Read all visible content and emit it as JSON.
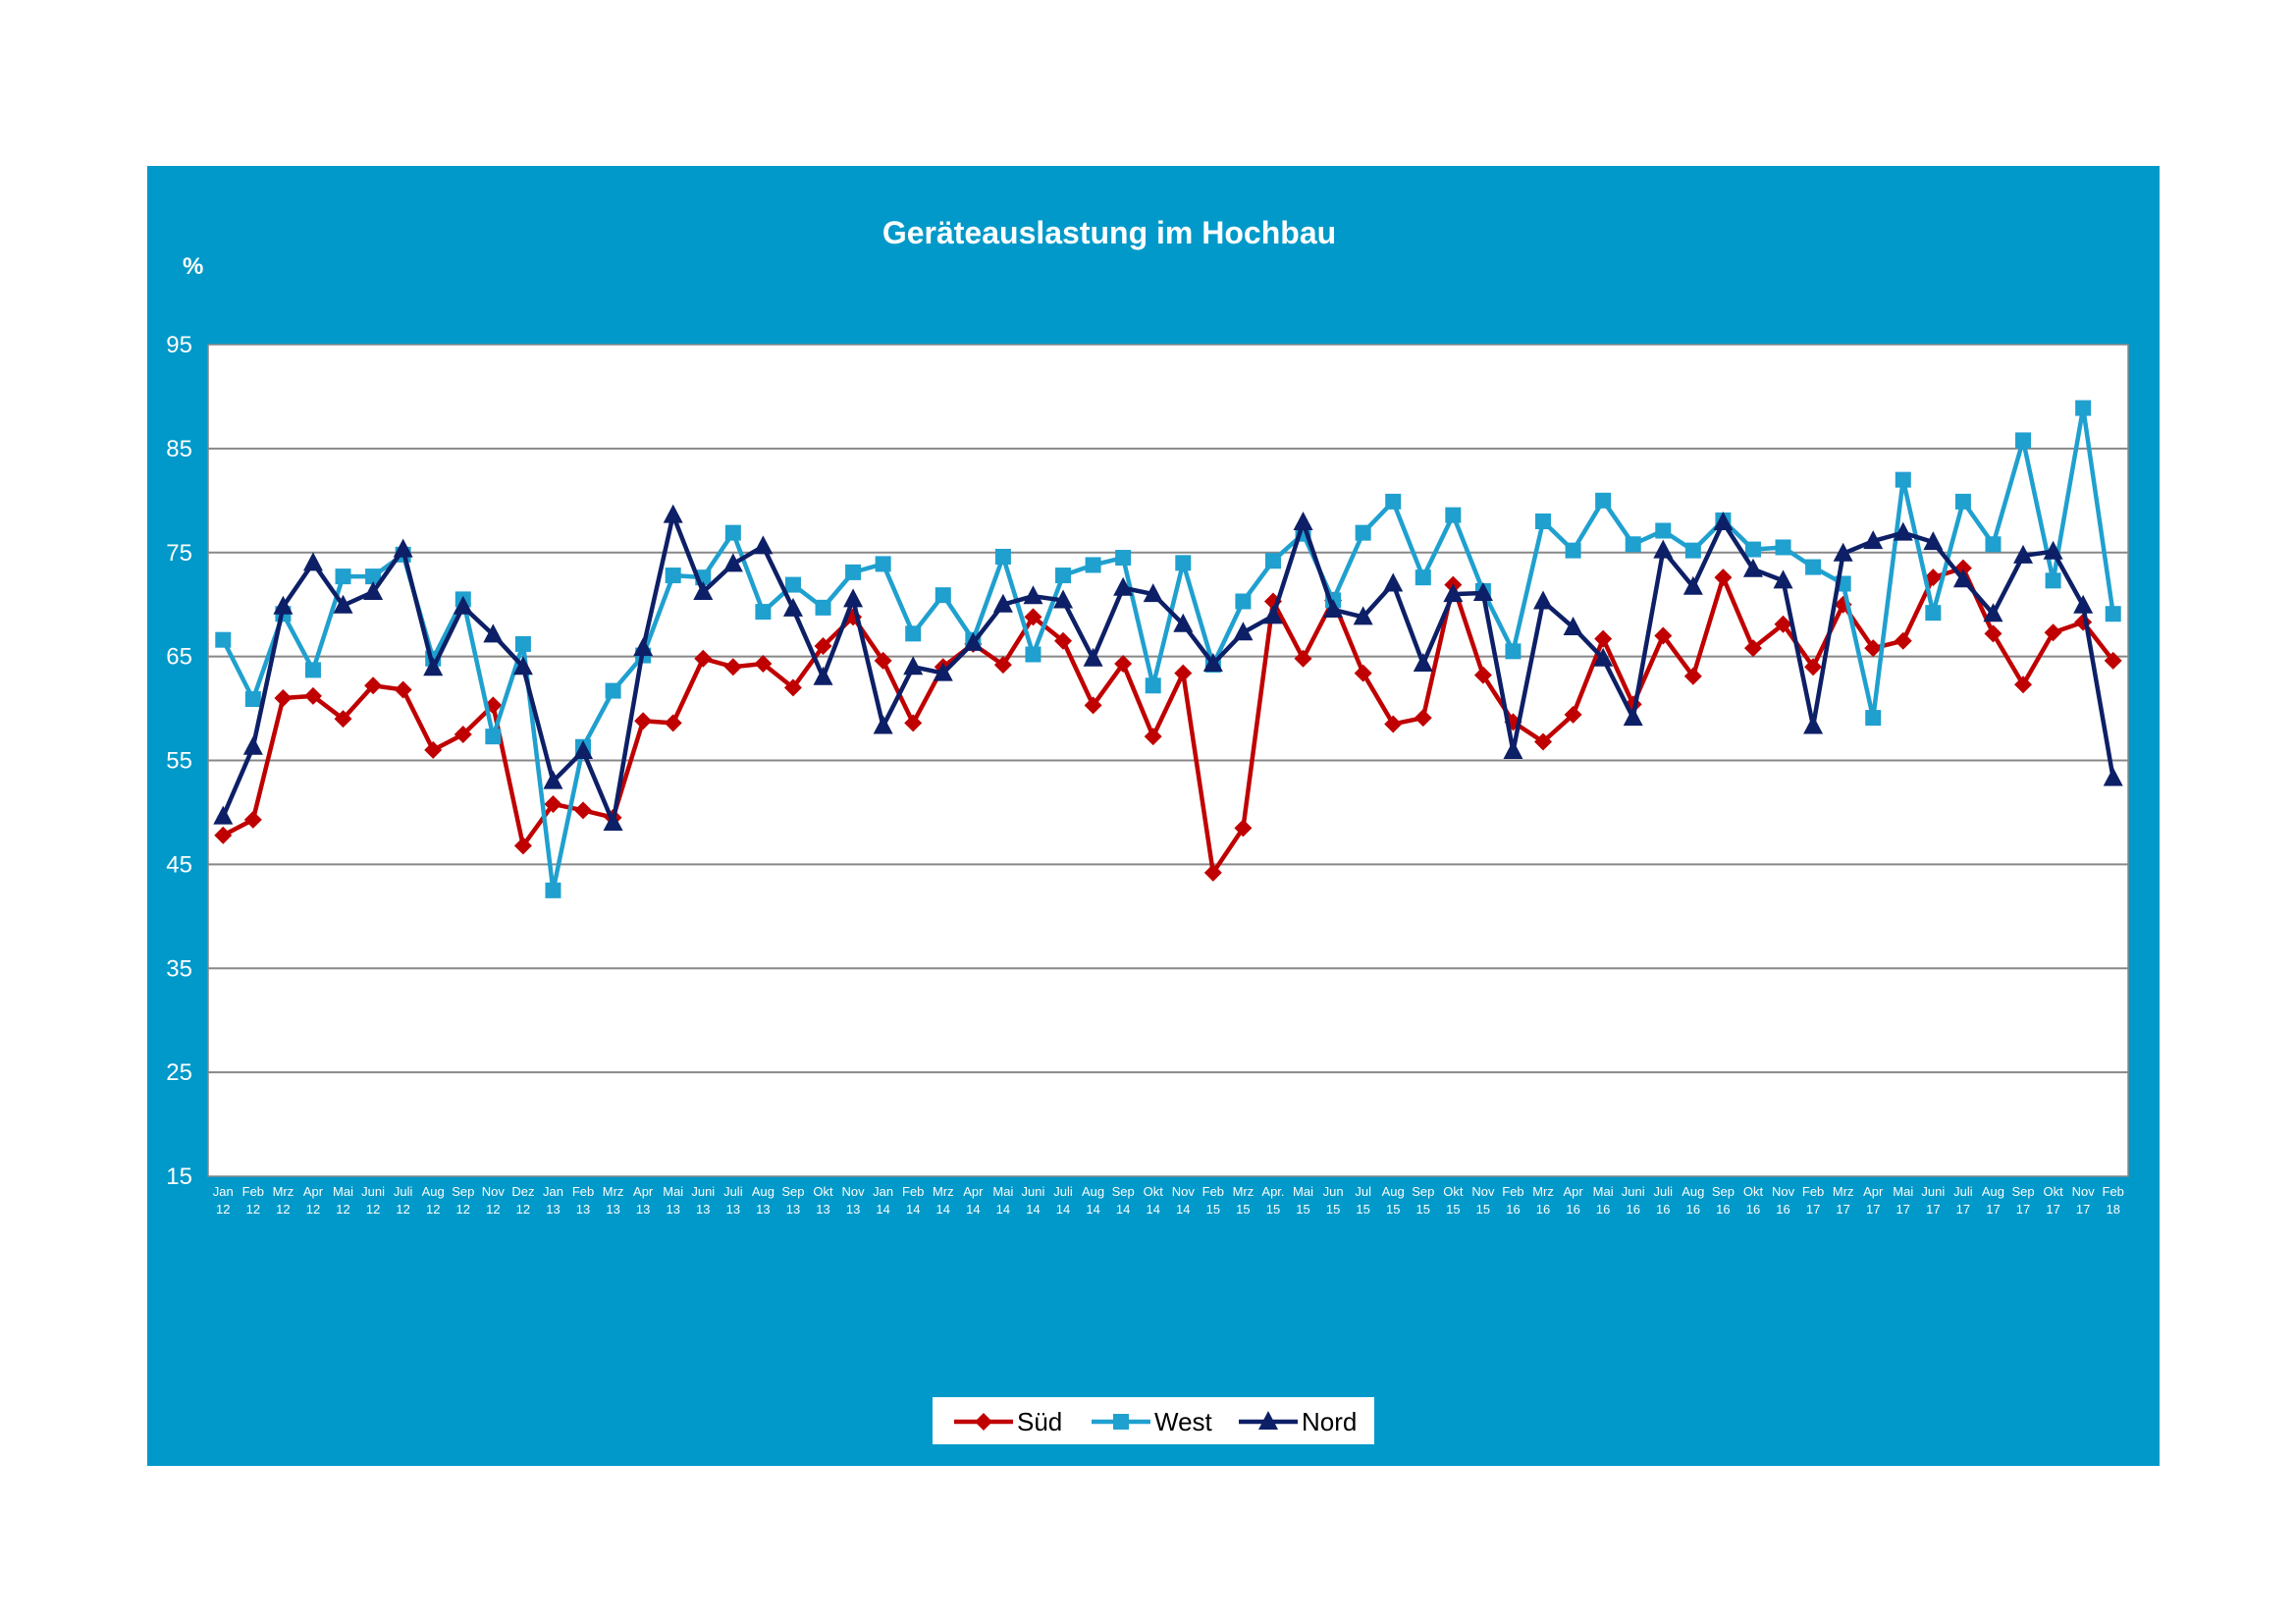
{
  "colors": {
    "frame": "#0099c9",
    "plot_bg": "#ffffff",
    "grid": "#888888",
    "sued": "#c00000",
    "west": "#1fa0cf",
    "nord": "#0d1f66"
  },
  "chart_data": {
    "type": "line",
    "title": "Geräteauslastung im Hochbau",
    "unit_label": "%",
    "xlabel": "",
    "ylabel": "",
    "ylim": [
      15,
      95
    ],
    "yticks": [
      "95",
      "85",
      "75",
      "65",
      "55",
      "45",
      "35",
      "25",
      "15"
    ],
    "grid": true,
    "legend_position": "bottom-center",
    "categories": [
      [
        "Jan",
        "12"
      ],
      [
        "Feb",
        "12"
      ],
      [
        "Mrz",
        "12"
      ],
      [
        "Apr",
        "12"
      ],
      [
        "Mai",
        "12"
      ],
      [
        "Juni",
        "12"
      ],
      [
        "Juli",
        "12"
      ],
      [
        "Aug",
        "12"
      ],
      [
        "Sep",
        "12"
      ],
      [
        "Nov",
        "12"
      ],
      [
        "Dez",
        "12"
      ],
      [
        "Jan",
        "13"
      ],
      [
        "Feb",
        "13"
      ],
      [
        "Mrz",
        "13"
      ],
      [
        "Apr",
        "13"
      ],
      [
        "Mai",
        "13"
      ],
      [
        "Juni",
        "13"
      ],
      [
        "Juli",
        "13"
      ],
      [
        "Aug",
        "13"
      ],
      [
        "Sep",
        "13"
      ],
      [
        "Okt",
        "13"
      ],
      [
        "Nov",
        "13"
      ],
      [
        "Jan",
        "14"
      ],
      [
        "Feb",
        "14"
      ],
      [
        "Mrz",
        "14"
      ],
      [
        "Apr",
        "14"
      ],
      [
        "Mai",
        "14"
      ],
      [
        "Juni",
        "14"
      ],
      [
        "Juli",
        "14"
      ],
      [
        "Aug",
        "14"
      ],
      [
        "Sep",
        "14"
      ],
      [
        "Okt",
        "14"
      ],
      [
        "Nov",
        "14"
      ],
      [
        "Feb",
        "15"
      ],
      [
        "Mrz",
        "15"
      ],
      [
        "Apr.",
        "15"
      ],
      [
        "Mai",
        "15"
      ],
      [
        "Jun",
        "15"
      ],
      [
        "Jul",
        "15"
      ],
      [
        "Aug",
        "15"
      ],
      [
        "Sep",
        "15"
      ],
      [
        "Okt",
        "15"
      ],
      [
        "Nov",
        "15"
      ],
      [
        "Feb",
        "16"
      ],
      [
        "Mrz",
        "16"
      ],
      [
        "Apr",
        "16"
      ],
      [
        "Mai",
        "16"
      ],
      [
        "Juni",
        "16"
      ],
      [
        "Juli",
        "16"
      ],
      [
        "Aug",
        "16"
      ],
      [
        "Sep",
        "16"
      ],
      [
        "Okt",
        "16"
      ],
      [
        "Nov",
        "16"
      ],
      [
        "Feb",
        "17"
      ],
      [
        "Mrz",
        "17"
      ],
      [
        "Apr",
        "17"
      ],
      [
        "Mai",
        "17"
      ],
      [
        "Juni",
        "17"
      ],
      [
        "Juli",
        "17"
      ],
      [
        "Aug",
        "17"
      ],
      [
        "Sep",
        "17"
      ],
      [
        "Okt",
        "17"
      ],
      [
        "Nov",
        "17"
      ],
      [
        "Feb",
        "18"
      ]
    ],
    "series": [
      {
        "name": "Süd",
        "marker": "diamond",
        "values": [
          47.8,
          49.3,
          61,
          61.2,
          59,
          62.2,
          61.8,
          56,
          57.5,
          60.3,
          46.8,
          50.8,
          50.2,
          49.5,
          58.8,
          58.6,
          64.8,
          64,
          64.3,
          62,
          66,
          68.8,
          64.6,
          58.6,
          64,
          66.2,
          64.2,
          68.8,
          66.5,
          60.3,
          64.3,
          57.3,
          63.4,
          44.2,
          48.5,
          70.3,
          64.8,
          70.4,
          63.4,
          58.5,
          59.1,
          71.9,
          63.2,
          58.7,
          56.8,
          59.4,
          66.7,
          60.4,
          67,
          63.1,
          72.6,
          65.8,
          68.1,
          64,
          70,
          65.8,
          66.5,
          72.6,
          73.5,
          67.2,
          62.3,
          67.3,
          68.3,
          64.6
        ]
      },
      {
        "name": "West",
        "marker": "square",
        "values": [
          66.6,
          60.9,
          69.1,
          63.7,
          72.7,
          72.7,
          74.8,
          64.8,
          70.5,
          57.3,
          66.2,
          42.5,
          56.3,
          61.7,
          65.1,
          72.8,
          72.6,
          76.9,
          69.3,
          71.9,
          69.7,
          73.1,
          73.9,
          67.2,
          70.9,
          66.6,
          74.6,
          65.2,
          72.8,
          73.8,
          74.5,
          62.2,
          74,
          64.2,
          70.3,
          74.2,
          76.8,
          70.4,
          76.9,
          79.9,
          72.6,
          78.6,
          71.3,
          65.5,
          78,
          75.2,
          80,
          75.8,
          77.1,
          75.2,
          78.1,
          75.3,
          75.5,
          73.6,
          72,
          59.1,
          82,
          69.2,
          79.9,
          75.8,
          85.8,
          72.3,
          88.9,
          69.1
        ]
      },
      {
        "name": "Nord",
        "marker": "triangle",
        "values": [
          49.6,
          56.3,
          69.8,
          74,
          69.9,
          71.2,
          75.3,
          63.9,
          69.8,
          67.1,
          64,
          53,
          55.9,
          49,
          65.8,
          78.6,
          71.2,
          73.9,
          75.6,
          69.6,
          63,
          70.5,
          58.3,
          64,
          63.4,
          66.3,
          70,
          70.8,
          70.4,
          64.8,
          71.6,
          71,
          68.1,
          64.3,
          67.3,
          68.9,
          77.9,
          69.5,
          68.8,
          72,
          64.3,
          71,
          71.1,
          55.9,
          70.3,
          67.8,
          64.8,
          59.1,
          75.2,
          71.7,
          77.9,
          73.4,
          72.3,
          58.3,
          74.9,
          76.1,
          76.9,
          76,
          72.4,
          69.1,
          74.7,
          75.1,
          69.9,
          53.3
        ]
      }
    ]
  }
}
